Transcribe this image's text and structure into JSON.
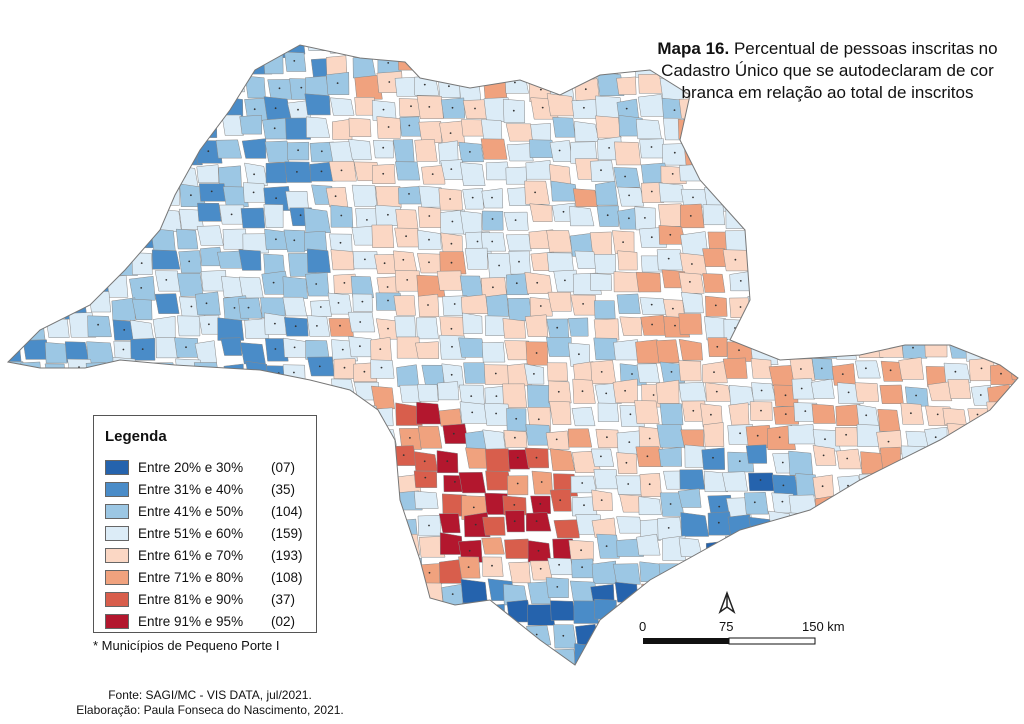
{
  "title": {
    "bold": "Mapa 16.",
    "text": "Percentual de pessoas inscritas no Cadastro Único que se autodeclaram de cor branca em relação ao total de inscritos"
  },
  "legend": {
    "title": "Legenda",
    "items": [
      {
        "label": "Entre 20% e 30%",
        "count": "(07)",
        "color": "#2563ad"
      },
      {
        "label": "Entre 31% e 40%",
        "count": "(35)",
        "color": "#4a8cc8"
      },
      {
        "label": "Entre 41% e 50%",
        "count": "(104)",
        "color": "#9cc7e4"
      },
      {
        "label": "Entre 51% e 60%",
        "count": "(159)",
        "color": "#dcecf7"
      },
      {
        "label": "Entre 61% e 70%",
        "count": "(193)",
        "color": "#fbd7c4"
      },
      {
        "label": "Entre 71% e 80%",
        "count": "(108)",
        "color": "#f0a27e"
      },
      {
        "label": "Entre 81% e 90%",
        "count": "(37)",
        "color": "#d85e4c"
      },
      {
        "label": "Entre 91% e 95%",
        "count": "(02)",
        "color": "#b3172e"
      }
    ]
  },
  "footnote": "* Municípios de Pequeno Porte I",
  "source": "Fonte: SAGI/MC - VIS DATA, jul/2021.",
  "credit": "Elaboração: Paula Fonseca do Nascimento, 2021.",
  "scale_bar": {
    "labels": [
      "0",
      "75",
      "150 km"
    ]
  },
  "north_arrow": {
    "label": "N",
    "icon": "north-arrow-icon"
  },
  "map_region": "São Paulo state municipalities (choropleth)"
}
